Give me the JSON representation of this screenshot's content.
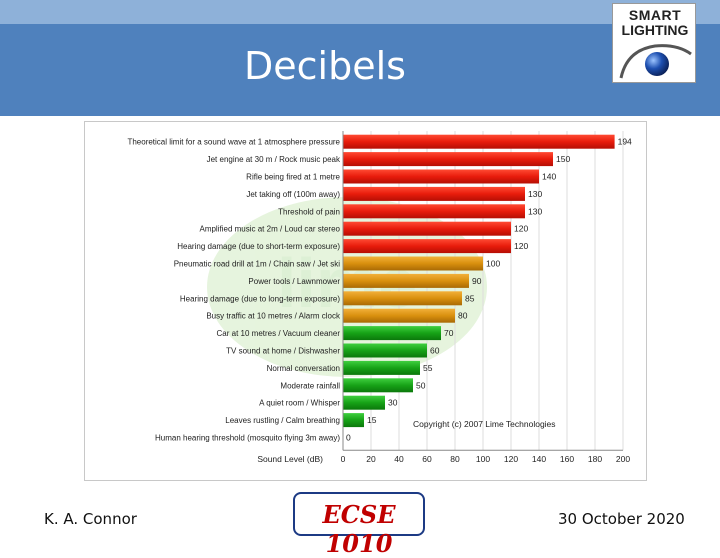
{
  "slide": {
    "title": "Decibels",
    "author": "K. A. Connor",
    "course": "ECSE 1010",
    "date": "30 October 2020"
  },
  "logo": {
    "line1": "SMART",
    "line2": "LIGHTING"
  },
  "chart_data": {
    "type": "bar",
    "orientation": "horizontal",
    "categories": [
      "Theoretical limit for a sound wave at 1 atmosphere pressure",
      "Jet engine at 30 m / Rock music peak",
      "Rifle being fired at 1 metre",
      "Jet taking off (100m away)",
      "Threshold of pain",
      "Amplified music at 2m / Loud car stereo",
      "Hearing damage (due to short-term exposure)",
      "Pneumatic road drill at 1m / Chain saw / Jet ski",
      "Power tools / Lawnmower",
      "Hearing damage (due to long-term exposure)",
      "Busy traffic at 10 metres / Alarm clock",
      "Car at 10 metres / Vacuum cleaner",
      "TV sound at home / Dishwasher",
      "Normal conversation",
      "Moderate rainfall",
      "A quiet room / Whisper",
      "Leaves rustling / Calm breathing",
      "Human hearing threshold (mosquito flying 3m away)"
    ],
    "values": [
      194,
      150,
      140,
      130,
      130,
      120,
      120,
      100,
      90,
      85,
      80,
      70,
      60,
      55,
      50,
      30,
      15,
      0
    ],
    "xlabel": "Sound Level (dB)",
    "xlim": [
      0,
      200
    ],
    "xticks": [
      0,
      20,
      40,
      60,
      80,
      100,
      120,
      140,
      160,
      180,
      200
    ],
    "annotation": "Copyright (c) 2007 Lime Technologies",
    "colors": {
      "high": "#e81c0c",
      "mid": "#d9900e",
      "low": "#17a217"
    }
  }
}
